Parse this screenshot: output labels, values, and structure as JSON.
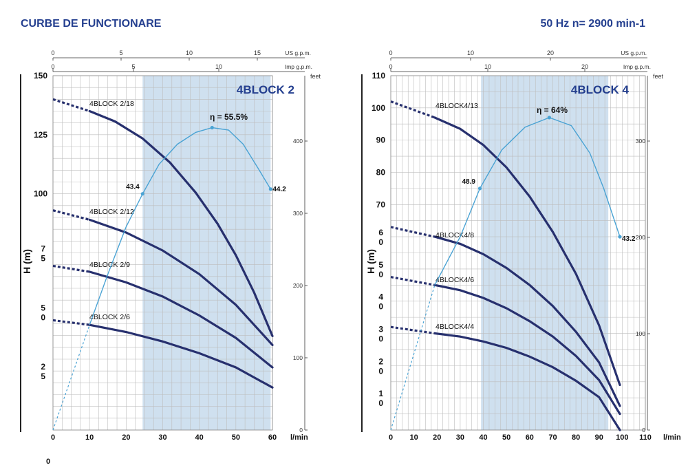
{
  "header": {
    "title": "CURBE DE FUNCTIONARE",
    "frequency": "50 Hz  n= 2900 min-1"
  },
  "colors": {
    "curve": "#27306e",
    "efficiency": "#4aa3d4",
    "band": "#cfe0ef",
    "grid": "#bdbdbd",
    "title_blue": "#243f8f"
  },
  "chart_data": [
    {
      "type": "line",
      "title": "4BLOCK 2",
      "xlabel": "l/min",
      "ylabel": "H (m)",
      "flow_ticks": [
        "0",
        "10",
        "20",
        "30",
        "40",
        "50",
        "60"
      ],
      "xlim": [
        0,
        60
      ],
      "head_ticks": [
        "150",
        "125",
        "100",
        "7\n5",
        "5\n0",
        "2\n5",
        "0"
      ],
      "ylim": [
        0,
        150
      ],
      "us_gpm_label": "US g.p.m.",
      "us_gpm_ticks": [
        "0",
        "5",
        "10",
        "15"
      ],
      "imp_gpm_label": "Imp g.p.m.",
      "imp_gpm_ticks": [
        "0",
        "5",
        "10"
      ],
      "feet_label": "feet",
      "feet_ticks": [
        "0",
        "100",
        "200",
        "300",
        "400"
      ],
      "best_efficiency_range": [
        24.5,
        59.5
      ],
      "series": [
        {
          "name": "4BLOCK 2/18",
          "dashed": [
            [
              0,
              140
            ],
            [
              10,
              135
            ]
          ],
          "solid": [
            [
              10,
              135
            ],
            [
              17,
              130.6
            ],
            [
              24.5,
              123.4
            ],
            [
              32,
              113.2
            ],
            [
              39,
              100.5
            ],
            [
              45,
              87.3
            ],
            [
              50,
              74
            ],
            [
              55,
              58.2
            ],
            [
              60,
              39.8
            ]
          ]
        },
        {
          "name": "4BLOCK 2/12",
          "dashed": [
            [
              0,
              93
            ],
            [
              10,
              89
            ]
          ],
          "solid": [
            [
              10,
              89
            ],
            [
              20,
              83.6
            ],
            [
              30,
              76
            ],
            [
              40,
              66
            ],
            [
              50,
              53
            ],
            [
              60,
              36
            ]
          ]
        },
        {
          "name": "4BLOCK 2/9",
          "dashed": [
            [
              0,
              69.5
            ],
            [
              10,
              67
            ]
          ],
          "solid": [
            [
              10,
              67
            ],
            [
              20,
              62.5
            ],
            [
              30,
              56.5
            ],
            [
              40,
              48.5
            ],
            [
              50,
              39
            ],
            [
              60,
              26.5
            ]
          ]
        },
        {
          "name": "4BLOCK 2/6",
          "dashed": [
            [
              0,
              46.5
            ],
            [
              10,
              44.5
            ]
          ],
          "solid": [
            [
              10,
              44.5
            ],
            [
              20,
              41.5
            ],
            [
              30,
              37.5
            ],
            [
              40,
              32.5
            ],
            [
              50,
              26.5
            ],
            [
              60,
              18
            ]
          ]
        }
      ],
      "efficiency": {
        "label": "η = 55.5%",
        "dashed": [
          [
            0,
            0
          ],
          [
            10,
            44.5
          ]
        ],
        "solid": [
          [
            10,
            44.5
          ],
          [
            15,
            66
          ],
          [
            20,
            86
          ],
          [
            24.5,
            100
          ],
          [
            29,
            112.5
          ],
          [
            34,
            121
          ],
          [
            39,
            126
          ],
          [
            43.5,
            128
          ],
          [
            48,
            127
          ],
          [
            52,
            121
          ],
          [
            56,
            111
          ],
          [
            59.5,
            102
          ]
        ],
        "points": [
          {
            "x": 24.5,
            "y": 100,
            "label": "43.4"
          },
          {
            "x": 43.5,
            "y": 128,
            "label": ""
          },
          {
            "x": 59.5,
            "y": 102,
            "label": "44.2"
          }
        ]
      }
    },
    {
      "type": "line",
      "title": "4BLOCK 4",
      "xlabel": "l/min",
      "ylabel": "H (m)",
      "flow_ticks": [
        "0",
        "10",
        "20",
        "30",
        "40",
        "50",
        "60",
        "70",
        "80",
        "90",
        "100",
        "110"
      ],
      "xlim": [
        0,
        110
      ],
      "head_ticks": [
        "110",
        "100",
        "90",
        "80",
        "70",
        "6\n0",
        "5\n0",
        "4\n0",
        "3\n0",
        "2\n0",
        "1\n0"
      ],
      "ylim": [
        0,
        110
      ],
      "us_gpm_label": "US g.p.m.",
      "us_gpm_ticks": [
        "0",
        "10",
        "20"
      ],
      "imp_gpm_label": "Imp g.p.m.",
      "imp_gpm_ticks": [
        "0",
        "10",
        "20"
      ],
      "feet_label": "feet",
      "feet_ticks": [
        "0",
        "100",
        "200",
        "300"
      ],
      "best_efficiency_range": [
        39,
        94
      ],
      "series": [
        {
          "name": "4BLOCK4/13",
          "dashed": [
            [
              0,
              102
            ],
            [
              19,
              97
            ]
          ],
          "solid": [
            [
              19,
              97
            ],
            [
              30,
              93.5
            ],
            [
              40,
              88.5
            ],
            [
              50,
              81.5
            ],
            [
              60,
              72.5
            ],
            [
              70,
              61.5
            ],
            [
              80,
              48.5
            ],
            [
              90,
              32.5
            ],
            [
              99,
              14
            ]
          ]
        },
        {
          "name": "4BLOCK4/8",
          "dashed": [
            [
              0,
              63
            ],
            [
              19,
              60
            ]
          ],
          "solid": [
            [
              19,
              60
            ],
            [
              30,
              57.8
            ],
            [
              40,
              54.6
            ],
            [
              50,
              50.3
            ],
            [
              60,
              45
            ],
            [
              70,
              38.5
            ],
            [
              80,
              30.5
            ],
            [
              90,
              21
            ],
            [
              99,
              7.5
            ]
          ]
        },
        {
          "name": "4BLOCK4/6",
          "dashed": [
            [
              0,
              47.5
            ],
            [
              19,
              45
            ]
          ],
          "solid": [
            [
              19,
              45
            ],
            [
              30,
              43.4
            ],
            [
              40,
              41
            ],
            [
              50,
              37.8
            ],
            [
              60,
              33.8
            ],
            [
              70,
              29
            ],
            [
              80,
              23
            ],
            [
              90,
              15.5
            ],
            [
              99,
              5
            ]
          ]
        },
        {
          "name": "4BLOCK4/4",
          "dashed": [
            [
              0,
              32
            ],
            [
              19,
              30
            ]
          ],
          "solid": [
            [
              19,
              30
            ],
            [
              30,
              29
            ],
            [
              40,
              27.5
            ],
            [
              50,
              25.5
            ],
            [
              60,
              22.8
            ],
            [
              70,
              19.5
            ],
            [
              80,
              15.3
            ],
            [
              90,
              10.2
            ],
            [
              99,
              0
            ]
          ]
        }
      ],
      "efficiency": {
        "label": "η = 64%",
        "dashed": [
          [
            0,
            0
          ],
          [
            19,
            45
          ]
        ],
        "solid": [
          [
            19,
            45
          ],
          [
            30,
            60
          ],
          [
            38.5,
            75
          ],
          [
            48,
            87
          ],
          [
            58,
            94
          ],
          [
            68.5,
            97
          ],
          [
            78,
            94.5
          ],
          [
            86,
            86
          ],
          [
            92,
            75
          ],
          [
            99,
            60
          ]
        ],
        "points": [
          {
            "x": 38.5,
            "y": 75,
            "label": "48.9"
          },
          {
            "x": 68.5,
            "y": 97,
            "label": ""
          },
          {
            "x": 99,
            "y": 60,
            "label": "43.2"
          }
        ]
      }
    }
  ]
}
